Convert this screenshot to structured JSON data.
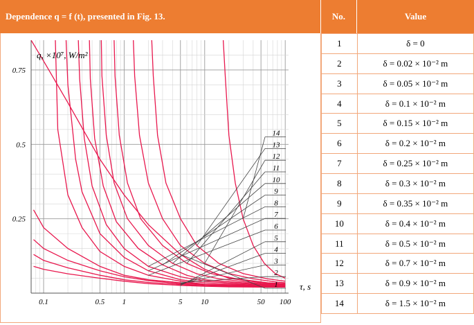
{
  "header": {
    "title": "Dependence q = f (t), presented in Fig. 13.",
    "col_no": "No.",
    "col_value": "Value"
  },
  "rows": [
    {
      "no": "1",
      "value": "δ = 0"
    },
    {
      "no": "2",
      "value": "δ = 0.02 × 10⁻² m"
    },
    {
      "no": "3",
      "value": "δ = 0.05 × 10⁻² m"
    },
    {
      "no": "4",
      "value": "δ = 0.1 × 10⁻² m"
    },
    {
      "no": "5",
      "value": "δ = 0.15 × 10⁻² m"
    },
    {
      "no": "6",
      "value": "δ = 0.2 × 10⁻² m"
    },
    {
      "no": "7",
      "value": "δ = 0.25 × 10⁻² m"
    },
    {
      "no": "8",
      "value": "δ = 0.3 × 10⁻² m"
    },
    {
      "no": "9",
      "value": "δ = 0.35 × 10⁻² m"
    },
    {
      "no": "10",
      "value": "δ = 0.4 × 10⁻² m"
    },
    {
      "no": "11",
      "value": "δ = 0.5 × 10⁻² m"
    },
    {
      "no": "12",
      "value": "δ = 0.7 × 10⁻² m"
    },
    {
      "no": "13",
      "value": "δ = 0.9 × 10⁻² m"
    },
    {
      "no": "14",
      "value": "δ = 1.5 × 10⁻² m"
    }
  ],
  "chart_data": {
    "type": "line",
    "ylabel": "q, ×10⁷, W/m²",
    "xlabel": "τ, s",
    "x_scale": "log",
    "xlim": [
      0.07,
      110
    ],
    "ylim": [
      0,
      0.85
    ],
    "x_ticks": [
      0.1,
      0.5,
      1,
      5,
      10,
      50,
      100
    ],
    "x_tick_labels": [
      "0.1",
      "0.5",
      "1",
      "5",
      "10",
      "50",
      "100"
    ],
    "y_ticks": [
      0.25,
      0.5,
      0.75
    ],
    "y_tick_labels": [
      "0.25",
      "0.5",
      "0.75"
    ],
    "grid": true,
    "line_color": "#e8174d",
    "curve_labels": [
      "1",
      "2",
      "3",
      "4",
      "5",
      "6",
      "7",
      "8",
      "9",
      "10",
      "11",
      "12",
      "13",
      "14"
    ],
    "series": [
      {
        "x": [
          0.07,
          0.1,
          0.2,
          0.5,
          1,
          2,
          5,
          10,
          20,
          50,
          100
        ],
        "y": [
          0.85,
          0.78,
          0.64,
          0.45,
          0.33,
          0.23,
          0.13,
          0.08,
          0.05,
          0.035,
          0.03
        ]
      },
      {
        "x": [
          0.075,
          0.1,
          0.2,
          0.5,
          1,
          2,
          5,
          10,
          20,
          50,
          100
        ],
        "y": [
          0.28,
          0.22,
          0.15,
          0.09,
          0.06,
          0.045,
          0.035,
          0.03,
          0.028,
          0.025,
          0.024
        ]
      },
      {
        "x": [
          0.075,
          0.1,
          0.2,
          0.5,
          1,
          2,
          5,
          10,
          20,
          50,
          100
        ],
        "y": [
          0.18,
          0.15,
          0.11,
          0.075,
          0.055,
          0.042,
          0.032,
          0.028,
          0.025,
          0.023,
          0.022
        ]
      },
      {
        "x": [
          0.075,
          0.1,
          0.2,
          0.5,
          1,
          2,
          5,
          10,
          20,
          50,
          100
        ],
        "y": [
          0.13,
          0.11,
          0.085,
          0.06,
          0.045,
          0.036,
          0.029,
          0.025,
          0.023,
          0.022,
          0.021
        ]
      },
      {
        "x": [
          0.075,
          0.1,
          0.2,
          0.5,
          1,
          2,
          5,
          10,
          20,
          50,
          100
        ],
        "y": [
          0.09,
          0.08,
          0.065,
          0.05,
          0.04,
          0.032,
          0.026,
          0.023,
          0.021,
          0.02,
          0.02
        ]
      },
      {
        "x": [
          0.14,
          0.15,
          0.2,
          0.3,
          0.5,
          1,
          2,
          5,
          10,
          50,
          100
        ],
        "y": [
          0.85,
          0.55,
          0.33,
          0.22,
          0.14,
          0.09,
          0.06,
          0.04,
          0.03,
          0.025,
          0.025
        ]
      },
      {
        "x": [
          0.19,
          0.2,
          0.25,
          0.3,
          0.5,
          1,
          2,
          5,
          10,
          50,
          100
        ],
        "y": [
          0.85,
          0.7,
          0.45,
          0.34,
          0.2,
          0.12,
          0.075,
          0.045,
          0.035,
          0.026,
          0.025
        ]
      },
      {
        "x": [
          0.27,
          0.28,
          0.32,
          0.4,
          0.6,
          1,
          2,
          5,
          10,
          50,
          100
        ],
        "y": [
          0.85,
          0.72,
          0.52,
          0.36,
          0.23,
          0.15,
          0.09,
          0.055,
          0.04,
          0.028,
          0.026
        ]
      },
      {
        "x": [
          0.37,
          0.38,
          0.43,
          0.55,
          0.8,
          1.5,
          3,
          6,
          10,
          50,
          100
        ],
        "y": [
          0.85,
          0.72,
          0.52,
          0.36,
          0.24,
          0.15,
          0.095,
          0.06,
          0.045,
          0.03,
          0.028
        ]
      },
      {
        "x": [
          0.52,
          0.53,
          0.6,
          0.75,
          1.1,
          2,
          4,
          8,
          15,
          50,
          100
        ],
        "y": [
          0.85,
          0.73,
          0.53,
          0.37,
          0.25,
          0.16,
          0.1,
          0.065,
          0.048,
          0.032,
          0.03
        ]
      },
      {
        "x": [
          0.75,
          0.77,
          0.87,
          1.1,
          1.6,
          3,
          6,
          12,
          25,
          60,
          100
        ],
        "y": [
          0.85,
          0.73,
          0.53,
          0.37,
          0.25,
          0.16,
          0.1,
          0.066,
          0.048,
          0.035,
          0.032
        ]
      },
      {
        "x": [
          1.3,
          1.35,
          1.55,
          2,
          3,
          5,
          10,
          20,
          40,
          80,
          100
        ],
        "y": [
          0.85,
          0.73,
          0.53,
          0.37,
          0.25,
          0.16,
          0.1,
          0.066,
          0.048,
          0.037,
          0.035
        ]
      },
      {
        "x": [
          2.2,
          2.3,
          2.6,
          3.3,
          5,
          8,
          15,
          30,
          60,
          100
        ],
        "y": [
          0.85,
          0.73,
          0.53,
          0.37,
          0.25,
          0.16,
          0.1,
          0.066,
          0.048,
          0.04
        ]
      },
      {
        "x": [
          17,
          18,
          20,
          24,
          30,
          40,
          55,
          75,
          100
        ],
        "y": [
          0.85,
          0.73,
          0.53,
          0.37,
          0.25,
          0.16,
          0.1,
          0.066,
          0.05
        ]
      }
    ]
  }
}
